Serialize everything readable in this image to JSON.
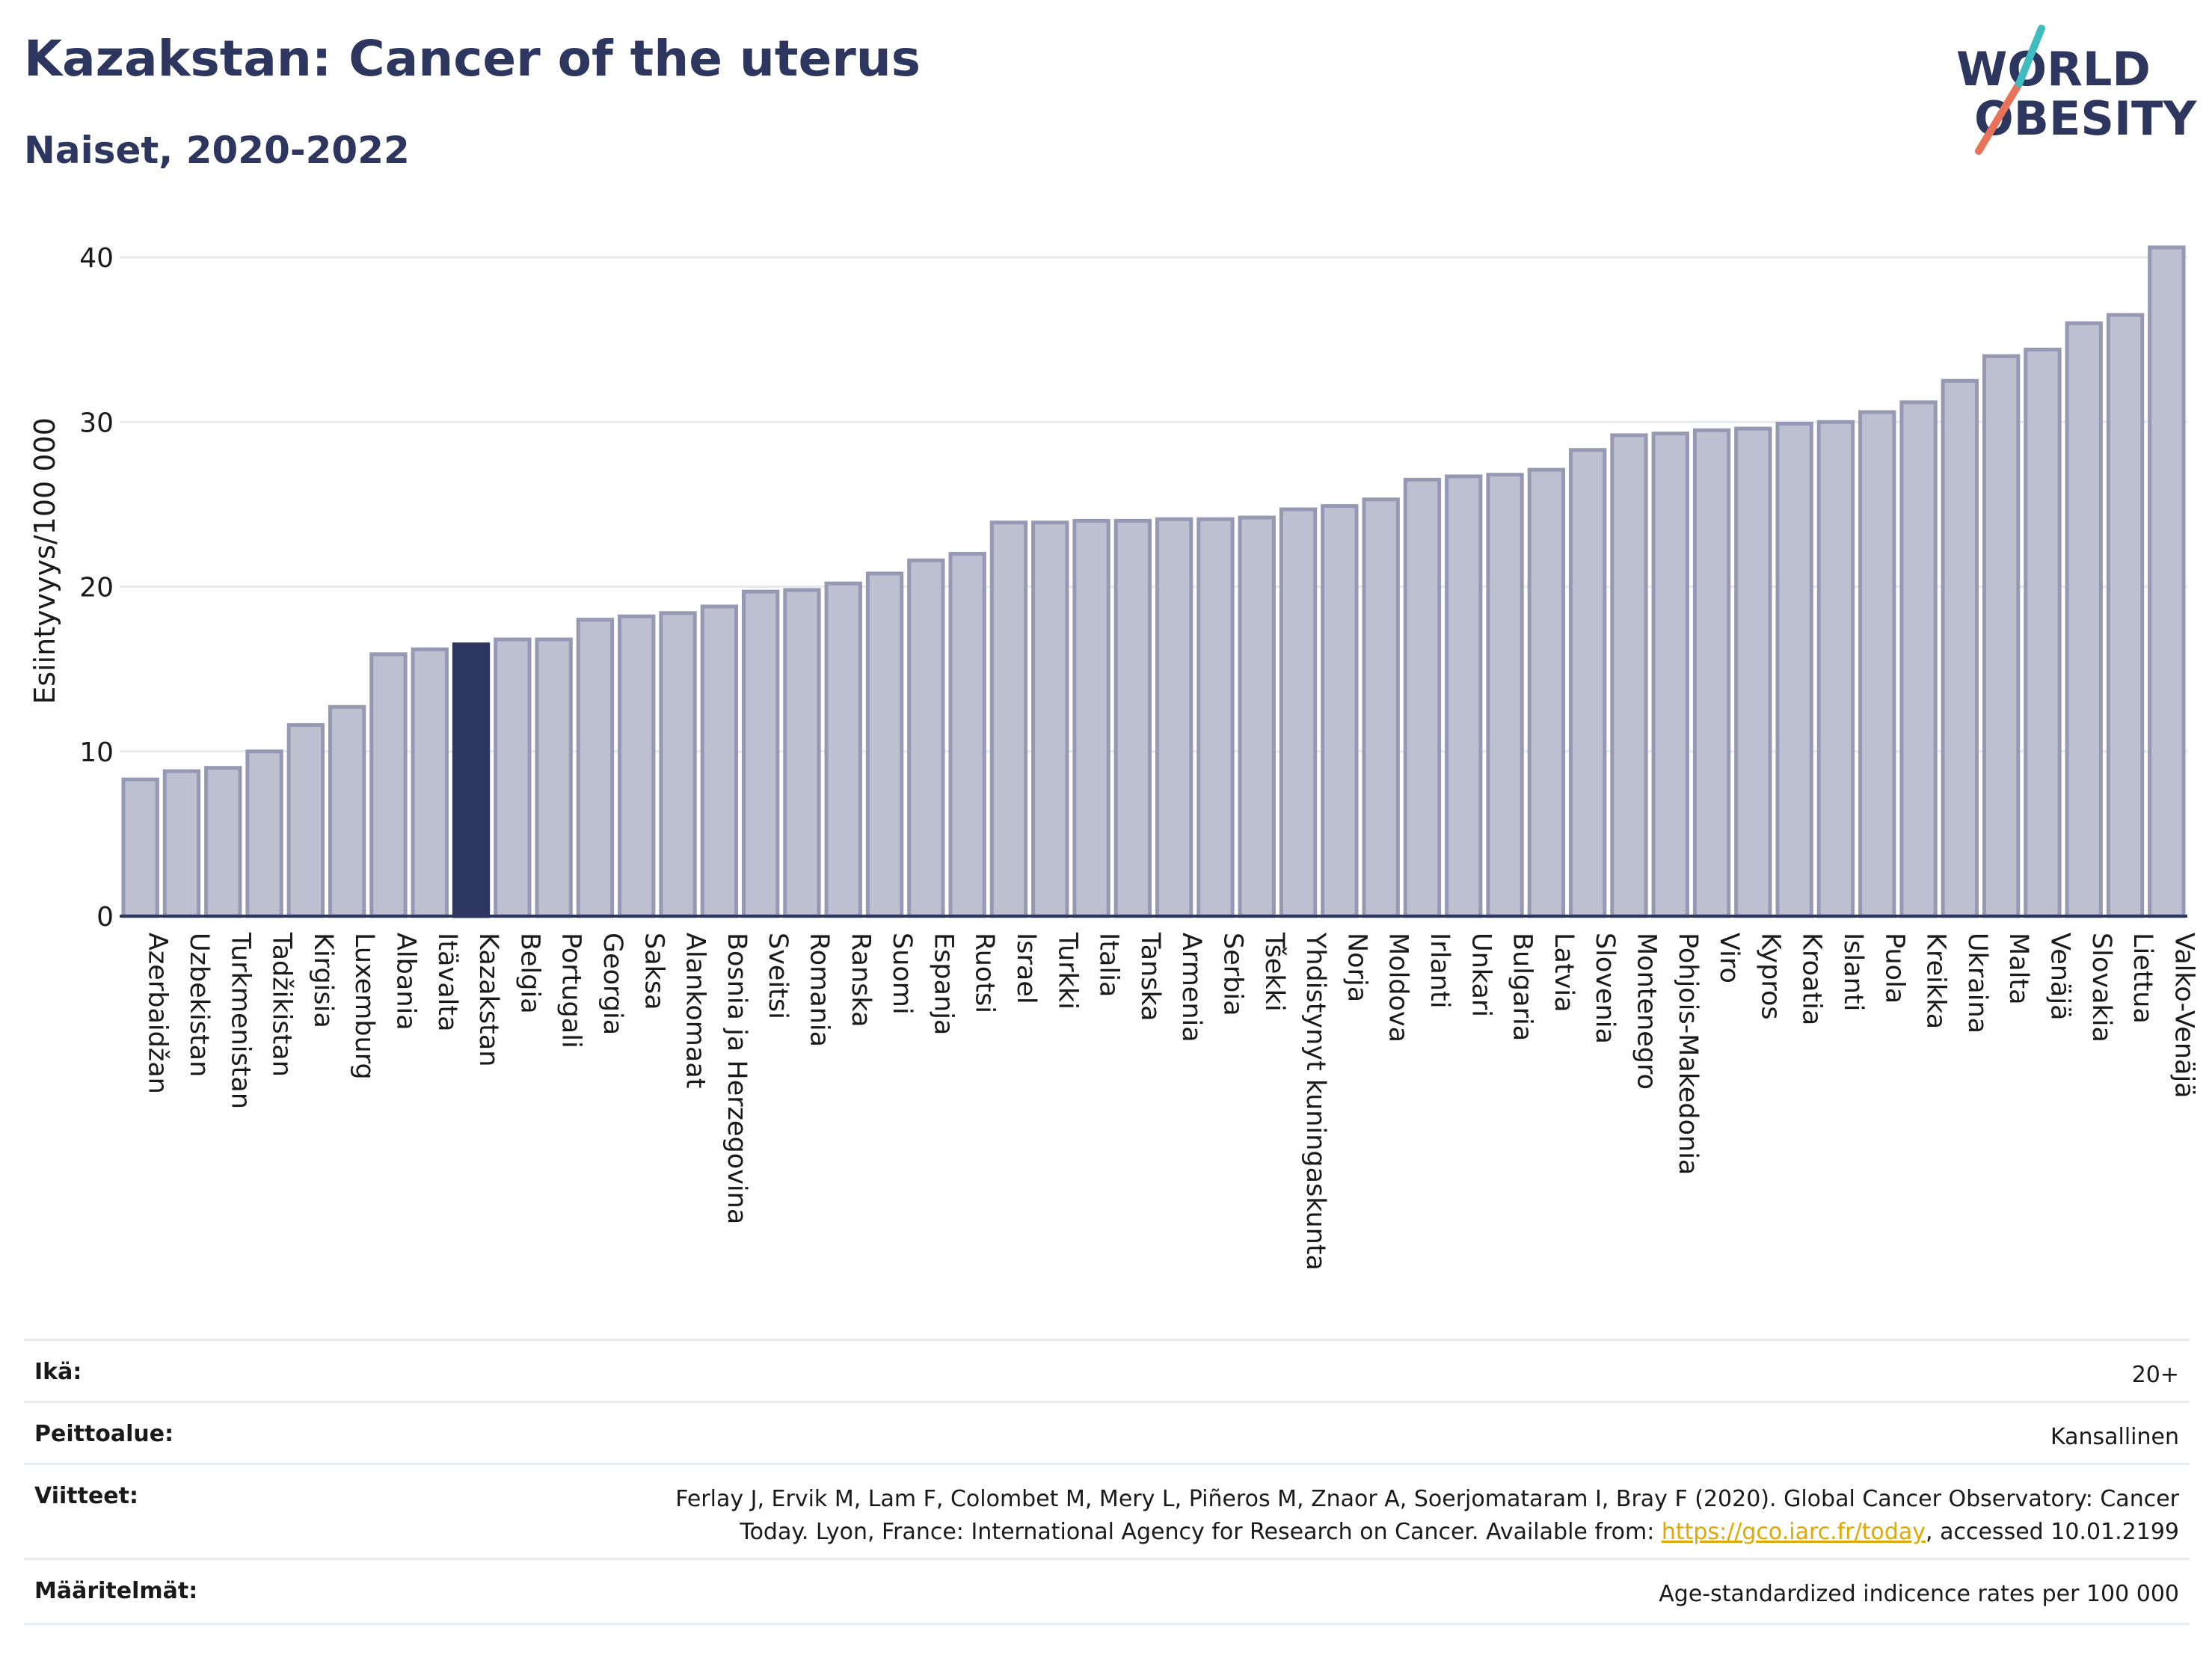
{
  "title": "Kazakstan: Cancer of the uterus",
  "subtitle": "Naiset, 2020-2022",
  "logo": {
    "line1": "WORLD",
    "line2": "OBESITY"
  },
  "colors": {
    "highlight": "#2c365e",
    "bar": "#bcc0d0",
    "bar_edge": "#9599b3",
    "title": "#2c365e",
    "link": "#e0a800",
    "grid": "#e6e9ee"
  },
  "chart_data": {
    "type": "bar",
    "ylabel": "Esiintyvyys/100 000",
    "xlabel": "",
    "ylim": [
      0,
      42
    ],
    "yticks": [
      0,
      10,
      20,
      30,
      40
    ],
    "grid": true,
    "highlight": "Kazakstan",
    "categories": [
      "Azerbaidžan",
      "Uzbekistan",
      "Turkmenistan",
      "Tadžikistan",
      "Kirgisia",
      "Luxemburg",
      "Albania",
      "Itävalta",
      "Kazakstan",
      "Belgia",
      "Portugali",
      "Georgia",
      "Saksa",
      "Alankomaat",
      "Bosnia ja Herzegovina",
      "Sveitsi",
      "Romania",
      "Ranska",
      "Suomi",
      "Espanja",
      "Ruotsi",
      "Israel",
      "Turkki",
      "Italia",
      "Tanska",
      "Armenia",
      "Serbia",
      "Tšekki",
      "Yhdistynyt kuningaskunta",
      "Norja",
      "Moldova",
      "Irlanti",
      "Unkari",
      "Bulgaria",
      "Latvia",
      "Slovenia",
      "Montenegro",
      "Pohjois-Makedonia",
      "Viro",
      "Kypros",
      "Kroatia",
      "Islanti",
      "Puola",
      "Kreikka",
      "Ukraina",
      "Malta",
      "Venäjä",
      "Slovakia",
      "Liettua",
      "Valko-Venäjä"
    ],
    "values": [
      8.3,
      8.8,
      9.0,
      10.0,
      11.6,
      12.7,
      15.9,
      16.2,
      16.5,
      16.8,
      16.8,
      18.0,
      18.2,
      18.4,
      18.8,
      19.7,
      19.8,
      20.2,
      20.8,
      21.6,
      22.0,
      23.9,
      23.9,
      24.0,
      24.0,
      24.1,
      24.1,
      24.2,
      24.7,
      24.9,
      25.3,
      26.5,
      26.7,
      26.8,
      27.1,
      28.3,
      29.2,
      29.3,
      29.5,
      29.6,
      29.9,
      30.0,
      30.6,
      31.2,
      32.5,
      34.0,
      34.4,
      36.0,
      36.5,
      40.6
    ]
  },
  "info": {
    "age_label": "Ikä:",
    "age_value": "20+",
    "coverage_label": "Peittoalue:",
    "coverage_value": "Kansallinen",
    "references_label": "Viitteet:",
    "references_text1": "Ferlay J, Ervik M, Lam F, Colombet M, Mery L, Piñeros M, Znaor A, Soerjomataram I, Bray F (2020). Global Cancer Observatory: Cancer",
    "references_text2": "Today. Lyon, France: International Agency for Research on Cancer. Available from: ",
    "references_link": "https://gco.iarc.fr/today",
    "references_text3": ", accessed 10.01.2199",
    "definitions_label": "Määritelmät:",
    "definitions_value": "Age-standardized indicence rates per 100 000"
  }
}
